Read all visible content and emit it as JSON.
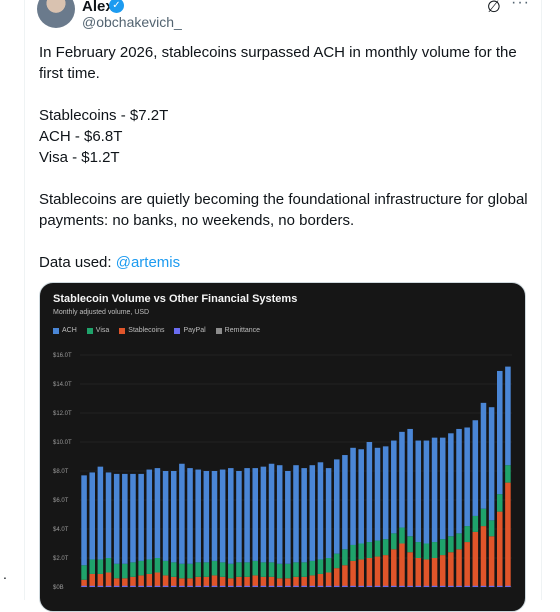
{
  "tweet": {
    "author_name": "Alex",
    "author_handle": "@obchakevich_",
    "verified_glyph": "✓",
    "grok_glyph": "∅",
    "more_glyph": "···",
    "lines": [
      "In February 2026, stablecoins surpassed ACH in monthly volume for the first time.",
      "Stablecoins - $7.2T",
      "ACH - $6.8T",
      "Visa - $1.2T",
      "Stablecoins are quietly becoming the foundational infrastructure for global payments: no banks, no weekends, no borders."
    ],
    "data_used_prefix": "Data used: ",
    "data_used_mention": "@artemis",
    "side_dot": "."
  },
  "colors": {
    "ACH": "#4a86d6",
    "Visa": "#1fa36b",
    "Stablecoins": "#e0552a",
    "PayPal": "#6a6cf0",
    "Remittance": "#8c8c8c"
  },
  "chart_data": {
    "type": "bar",
    "stacked": true,
    "title": "Stablecoin Volume vs Other Financial Systems",
    "subtitle": "Monthly adjusted volume, USD",
    "ylim": [
      0,
      16
    ],
    "y_ticks": [
      "$0B",
      "$2.0T",
      "$4.0T",
      "$6.0T",
      "$8.0T",
      "$10.0T",
      "$12.0T",
      "$14.0T",
      "$16.0T"
    ],
    "legend": [
      "ACH",
      "Visa",
      "Stablecoins",
      "PayPal",
      "Remittance"
    ],
    "grid": true,
    "series": [
      {
        "name": "Stablecoins",
        "values": [
          0.5,
          0.9,
          0.9,
          1.0,
          0.6,
          0.6,
          0.7,
          0.8,
          0.9,
          1.0,
          0.8,
          0.7,
          0.6,
          0.6,
          0.7,
          0.7,
          0.8,
          0.7,
          0.6,
          0.7,
          0.7,
          0.8,
          0.7,
          0.7,
          0.6,
          0.6,
          0.7,
          0.7,
          0.8,
          0.9,
          1.0,
          1.3,
          1.5,
          1.8,
          1.9,
          2.0,
          2.1,
          2.2,
          2.6,
          3.0,
          2.4,
          2.0,
          1.9,
          2.0,
          2.2,
          2.4,
          2.6,
          3.1,
          3.8,
          4.2,
          3.5,
          5.2,
          7.2
        ]
      },
      {
        "name": "Visa",
        "values": [
          1.0,
          1.0,
          1.0,
          1.0,
          1.0,
          1.0,
          1.0,
          1.0,
          1.0,
          1.0,
          1.0,
          1.0,
          1.0,
          1.0,
          1.0,
          1.0,
          1.0,
          1.0,
          1.0,
          1.0,
          1.0,
          1.0,
          1.0,
          1.0,
          1.0,
          1.0,
          1.0,
          1.0,
          1.0,
          1.0,
          1.0,
          1.0,
          1.1,
          1.1,
          1.1,
          1.1,
          1.1,
          1.1,
          1.1,
          1.1,
          1.1,
          1.1,
          1.1,
          1.1,
          1.1,
          1.1,
          1.1,
          1.1,
          1.1,
          1.2,
          1.1,
          1.2,
          1.2
        ]
      },
      {
        "name": "ACH",
        "values": [
          6.2,
          6.0,
          6.4,
          5.9,
          6.2,
          6.2,
          6.1,
          6.0,
          6.2,
          6.2,
          6.2,
          6.3,
          6.9,
          6.6,
          6.4,
          6.3,
          6.2,
          6.4,
          6.6,
          6.3,
          6.5,
          6.4,
          6.6,
          6.8,
          6.8,
          6.4,
          6.7,
          6.5,
          6.6,
          6.7,
          6.2,
          6.5,
          6.5,
          6.7,
          6.5,
          6.9,
          6.4,
          6.4,
          6.4,
          6.6,
          7.4,
          7.0,
          7.1,
          7.2,
          7.0,
          7.1,
          7.2,
          6.8,
          6.6,
          7.3,
          7.8,
          8.5,
          6.8
        ]
      }
    ]
  }
}
